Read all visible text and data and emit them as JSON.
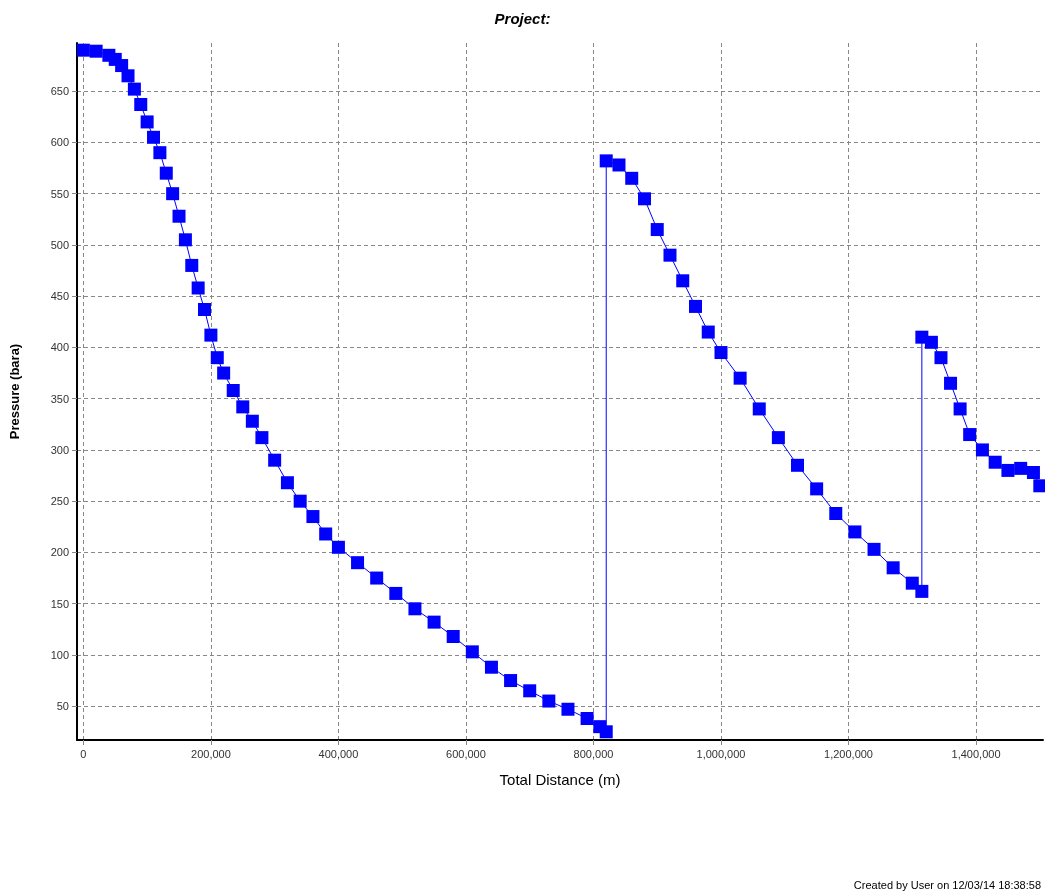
{
  "chart_data": {
    "type": "line",
    "title": "Project:",
    "xlabel": "Total Distance (m)",
    "ylabel": "Pressure (bara)",
    "annotations": [
      "Created by User on 12/03/14 18:38:58"
    ],
    "x": [
      0,
      20000,
      40000,
      50000,
      60000,
      70000,
      80000,
      90000,
      100000,
      110000,
      120000,
      130000,
      140000,
      150000,
      160000,
      170000,
      180000,
      190000,
      200000,
      210000,
      220000,
      235000,
      250000,
      265000,
      280000,
      300000,
      320000,
      340000,
      360000,
      380000,
      400000,
      430000,
      460000,
      490000,
      520000,
      550000,
      580000,
      610000,
      640000,
      670000,
      700000,
      730000,
      760000,
      790000,
      810000,
      820000,
      820000,
      840000,
      860000,
      880000,
      900000,
      920000,
      940000,
      960000,
      980000,
      1000000,
      1030000,
      1060000,
      1090000,
      1120000,
      1150000,
      1180000,
      1210000,
      1240000,
      1270000,
      1300000,
      1315000,
      1315000,
      1330000,
      1345000,
      1360000,
      1375000,
      1390000,
      1410000,
      1430000,
      1450000,
      1470000,
      1490000,
      1500000
    ],
    "series": [
      {
        "color": "#0000ff",
        "values": [
          690,
          689,
          685,
          681,
          675,
          665,
          652,
          637,
          620,
          605,
          590,
          570,
          550,
          528,
          505,
          480,
          458,
          437,
          412,
          390,
          375,
          358,
          342,
          328,
          312,
          290,
          268,
          250,
          235,
          218,
          205,
          190,
          175,
          160,
          145,
          132,
          118,
          103,
          88,
          75,
          65,
          55,
          47,
          38,
          30,
          25,
          582,
          578,
          565,
          545,
          515,
          490,
          465,
          440,
          415,
          395,
          370,
          340,
          312,
          285,
          262,
          238,
          220,
          203,
          185,
          170,
          162,
          410,
          405,
          390,
          365,
          340,
          315,
          300,
          288,
          280,
          282,
          278,
          265
        ]
      }
    ],
    "xlim": [
      -10000,
      1505000
    ],
    "ylim": [
      17,
      697
    ],
    "xticks": [
      {
        "value": 0,
        "label": "0"
      },
      {
        "value": 200000,
        "label": "200,000"
      },
      {
        "value": 400000,
        "label": "400,000"
      },
      {
        "value": 600000,
        "label": "600,000"
      },
      {
        "value": 800000,
        "label": "800,000"
      },
      {
        "value": 1000000,
        "label": "1,000,000"
      },
      {
        "value": 1200000,
        "label": "1,200,000"
      },
      {
        "value": 1400000,
        "label": "1,400,000"
      }
    ],
    "yticks": [
      50,
      100,
      150,
      200,
      250,
      300,
      350,
      400,
      450,
      500,
      550,
      600,
      650
    ],
    "grid": true,
    "marker": "square",
    "line_style": "solid"
  }
}
